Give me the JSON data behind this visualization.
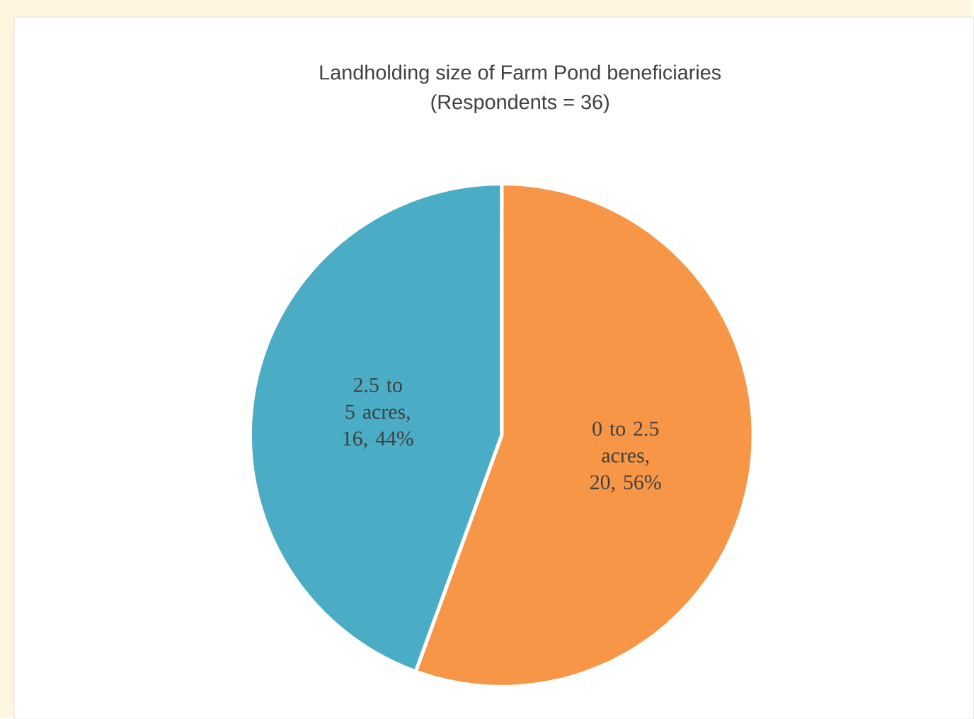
{
  "chart_data": {
    "type": "pie",
    "title": "Landholding size of Farm Pond beneficiaries",
    "subtitle": "(Respondents = 36)",
    "categories": [
      "0 to 2.5 acres",
      "2.5 to 5 acres"
    ],
    "values": [
      20,
      16
    ],
    "value_labels": [
      ", 20, 56%",
      ", 16, 44%"
    ],
    "colors": [
      "#f79646",
      "#4bacc6"
    ]
  }
}
